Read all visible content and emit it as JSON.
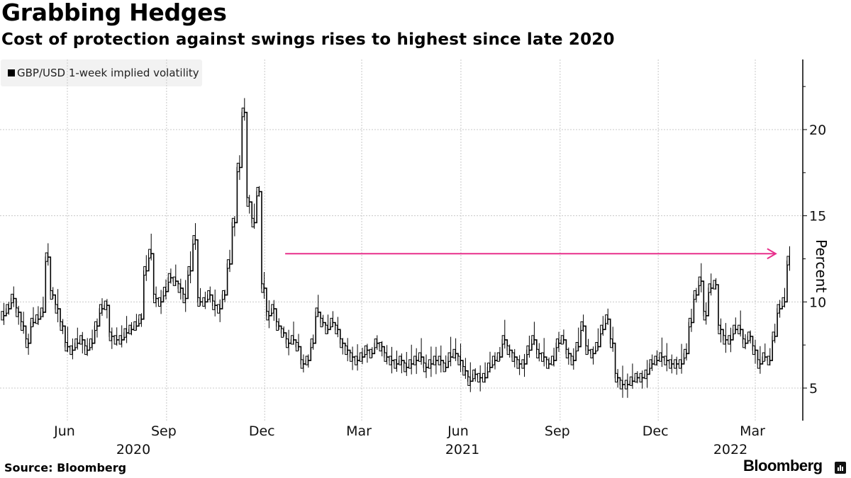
{
  "header": {
    "title": "Grabbing Hedges",
    "subtitle": "Cost of protection against swings rises to highest since late 2020"
  },
  "legend": {
    "label": "GBP/USD 1-week implied volatility"
  },
  "footer": {
    "source": "Source: Bloomberg",
    "brand": "Bloomberg"
  },
  "colors": {
    "series": "#000000",
    "annotation_arrow": "#e8308c",
    "grid": "#c8c8c8"
  },
  "chart_data": {
    "type": "line",
    "title": "Grabbing Hedges",
    "subtitle": "Cost of protection against swings rises to highest since late 2020",
    "xlabel": "",
    "ylabel": "Percent",
    "ylim": [
      3.2,
      24.3
    ],
    "yticks": [
      5,
      10,
      15,
      20
    ],
    "grid": true,
    "legend_position": "top-left",
    "x_start": "2020-04-01",
    "x_end": "2022-04-15",
    "x_ticks": [
      {
        "label": "Jun",
        "date": "2020-06-01"
      },
      {
        "label": "Sep",
        "date": "2020-09-01"
      },
      {
        "label": "Dec",
        "date": "2020-12-01"
      },
      {
        "label": "Mar",
        "date": "2021-03-01"
      },
      {
        "label": "Jun",
        "date": "2021-06-01"
      },
      {
        "label": "Sep",
        "date": "2021-09-01"
      },
      {
        "label": "Dec",
        "date": "2021-12-01"
      },
      {
        "label": "Mar",
        "date": "2022-03-01"
      }
    ],
    "year_labels": [
      {
        "label": "2020",
        "date": "2020-08-15"
      },
      {
        "label": "2021",
        "date": "2021-07-01"
      },
      {
        "label": "2022",
        "date": "2022-02-15"
      }
    ],
    "series": [
      {
        "name": "GBP/USD 1-week implied volatility",
        "frequency": "weekly (approx.)",
        "values": [
          9.2,
          9.6,
          10.2,
          9.4,
          8.6,
          7.6,
          8.8,
          9.0,
          9.4,
          12.6,
          10.4,
          9.6,
          8.6,
          7.4,
          7.2,
          7.6,
          7.8,
          7.2,
          7.6,
          8.6,
          9.6,
          9.8,
          8.0,
          7.8,
          7.8,
          8.2,
          8.4,
          8.6,
          9.0,
          11.8,
          12.8,
          10.2,
          10.0,
          10.6,
          11.4,
          11.2,
          10.8,
          10.2,
          11.8,
          13.6,
          10.0,
          10.0,
          10.4,
          9.8,
          9.6,
          10.4,
          12.2,
          14.6,
          17.8,
          21.0,
          15.8,
          14.6,
          16.4,
          10.8,
          9.2,
          9.6,
          8.6,
          8.2,
          7.6,
          7.8,
          7.4,
          6.4,
          6.6,
          7.6,
          9.4,
          8.8,
          8.4,
          8.8,
          8.4,
          7.6,
          7.2,
          6.8,
          6.6,
          6.8,
          7.2,
          7.0,
          7.6,
          7.4,
          6.8,
          6.6,
          6.4,
          6.6,
          6.2,
          6.4,
          6.6,
          6.8,
          6.2,
          6.4,
          6.6,
          6.6,
          6.2,
          6.8,
          7.0,
          6.6,
          6.0,
          5.4,
          5.8,
          5.6,
          5.6,
          6.2,
          6.6,
          6.8,
          7.8,
          7.2,
          6.8,
          6.4,
          6.4,
          7.2,
          7.8,
          7.0,
          6.8,
          6.4,
          6.6,
          7.6,
          7.8,
          7.0,
          6.6,
          7.4,
          8.6,
          7.2,
          7.0,
          7.4,
          8.4,
          9.0,
          7.6,
          5.6,
          5.2,
          5.2,
          5.4,
          5.6,
          5.6,
          5.8,
          6.4,
          6.6,
          6.8,
          6.6,
          6.4,
          6.4,
          6.4,
          7.0,
          8.8,
          10.4,
          11.2,
          9.2,
          10.8,
          11.0,
          8.4,
          7.8,
          7.8,
          8.4,
          8.4,
          7.6,
          8.0,
          7.2,
          6.4,
          6.8,
          6.6,
          8.0,
          9.6,
          10.0,
          12.4
        ]
      }
    ],
    "annotations": [
      {
        "type": "arrow",
        "value": 12.8,
        "from_date": "2020-12-20",
        "to_date": "2022-03-20",
        "description": "horizontal reference arrow at latest level"
      }
    ]
  }
}
